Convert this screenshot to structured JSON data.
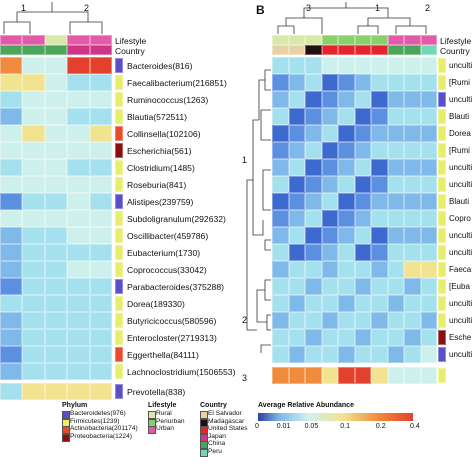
{
  "colors": {
    "dark_blue": "#2c3fa6",
    "blue": "#3e69cf",
    "mid_blue": "#5b8fe0",
    "light_blue": "#7fb9ea",
    "cyan": "#a4e0ee",
    "pale": "#cdf0ec",
    "yellow": "#f2e390",
    "orange": "#f08a3c",
    "red": "#e3402e",
    "phylum_bacteroidetes": "#5b4fc9",
    "phylum_firmicutes": "#e8ee6c",
    "phylum_actinobacteria": "#ea4a2a",
    "phylum_proteobacteria": "#8a1010",
    "lifestyle_rural": "#d8e8a8",
    "lifestyle_periurban": "#8bcf6a",
    "lifestyle_urban": "#e35aa8",
    "country_el_salvador": "#e8d2a4",
    "country_madagascar": "#201010",
    "country_united_states": "#e8232d",
    "country_china": "#4aa65a",
    "country_japan": "#d03488",
    "country_peru": "#6fd9b2"
  },
  "panel_a": {
    "cluster_labels": [
      "1",
      "2"
    ],
    "header_labels": {
      "lifestyle": "Lifestyle",
      "country": "Country"
    },
    "rows": [
      {
        "label": "Bacteroides(816)",
        "phylum": "bacteroidetes"
      },
      {
        "label": "Faecalibacterium(216851)",
        "phylum": "firmicutes"
      },
      {
        "label": "Ruminococcus(1263)",
        "phylum": "firmicutes"
      },
      {
        "label": "Blautia(572511)",
        "phylum": "firmicutes"
      },
      {
        "label": "Collinsella(102106)",
        "phylum": "actinobacteria"
      },
      {
        "label": "Escherichia(561)",
        "phylum": "proteobacteria"
      },
      {
        "label": "Clostridium(1485)",
        "phylum": "firmicutes"
      },
      {
        "label": "Roseburia(841)",
        "phylum": "firmicutes"
      },
      {
        "label": "Alistipes(239759)",
        "phylum": "bacteroidetes"
      },
      {
        "label": "Subdoligranulum(292632)",
        "phylum": "firmicutes"
      },
      {
        "label": "Oscillibacter(459786)",
        "phylum": "firmicutes"
      },
      {
        "label": "Eubacterium(1730)",
        "phylum": "firmicutes"
      },
      {
        "label": "Coprococcus(33042)",
        "phylum": "firmicutes"
      },
      {
        "label": "Parabacteroides(375288)",
        "phylum": "bacteroidetes"
      },
      {
        "label": "Dorea(189330)",
        "phylum": "firmicutes"
      },
      {
        "label": "Butyricicoccus(580596)",
        "phylum": "firmicutes"
      },
      {
        "label": "Enterocloster(2719313)",
        "phylum": "firmicutes"
      },
      {
        "label": "Eggerthella(84111)",
        "phylum": "actinobacteria"
      },
      {
        "label": "Lachnoclostridium(1506553)",
        "phylum": "firmicutes"
      },
      {
        "label": "Prevotella(838)",
        "phylum": "bacteroidetes"
      }
    ],
    "cells": [
      [
        "orange",
        "pale",
        "pale",
        "red",
        "red"
      ],
      [
        "yellow",
        "yellow",
        "pale",
        "cyan",
        "cyan"
      ],
      [
        "cyan",
        "pale",
        "pale",
        "pale",
        "pale"
      ],
      [
        "light_blue",
        "pale",
        "pale",
        "cyan",
        "cyan"
      ],
      [
        "pale",
        "yellow",
        "pale",
        "pale",
        "yellow"
      ],
      [
        "pale",
        "pale",
        "pale",
        "pale",
        "pale"
      ],
      [
        "cyan",
        "pale",
        "pale",
        "cyan",
        "cyan"
      ],
      [
        "pale",
        "pale",
        "pale",
        "pale",
        "pale"
      ],
      [
        "mid_blue",
        "cyan",
        "cyan",
        "pale",
        "cyan"
      ],
      [
        "pale",
        "pale",
        "pale",
        "pale",
        "pale"
      ],
      [
        "light_blue",
        "cyan",
        "cyan",
        "pale",
        "pale"
      ],
      [
        "light_blue",
        "cyan",
        "cyan",
        "cyan",
        "cyan"
      ],
      [
        "light_blue",
        "cyan",
        "cyan",
        "pale",
        "pale"
      ],
      [
        "mid_blue",
        "cyan",
        "cyan",
        "cyan",
        "cyan"
      ],
      [
        "cyan",
        "cyan",
        "cyan",
        "cyan",
        "cyan"
      ],
      [
        "light_blue",
        "cyan",
        "cyan",
        "cyan",
        "cyan"
      ],
      [
        "light_blue",
        "cyan",
        "cyan",
        "cyan",
        "cyan"
      ],
      [
        "mid_blue",
        "cyan",
        "cyan",
        "cyan",
        "cyan"
      ],
      [
        "light_blue",
        "cyan",
        "cyan",
        "cyan",
        "cyan"
      ],
      [
        "cyan",
        "yellow",
        "yellow",
        "yellow",
        "yellow"
      ]
    ],
    "lifestyle_bar": [
      "urban",
      "urban",
      "rural",
      "urban",
      "urban"
    ],
    "country_bar": [
      "china",
      "china",
      "china",
      "japan",
      "japan"
    ]
  },
  "panel_b": {
    "letter": "B",
    "cluster_labels": [
      "3",
      "1",
      "2"
    ],
    "row_clusters": [
      "1",
      "2",
      "3"
    ],
    "header_labels": {
      "lifestyle": "Lifestyle",
      "country": "Country"
    },
    "rows": [
      {
        "label": "[Rumi",
        "phylum": "firmicutes"
      },
      {
        "label": "unculti",
        "phylum": "bacteroidetes"
      },
      {
        "label": "Blauti",
        "phylum": "firmicutes"
      },
      {
        "label": "Dorea",
        "phylum": "firmicutes"
      },
      {
        "label": "[Rumi",
        "phylum": "firmicutes"
      },
      {
        "label": "unculti",
        "phylum": "firmicutes"
      },
      {
        "label": "unculti",
        "phylum": "firmicutes"
      },
      {
        "label": "Blauti",
        "phylum": "firmicutes"
      },
      {
        "label": "Copro",
        "phylum": "firmicutes"
      },
      {
        "label": "unculti",
        "phylum": "firmicutes"
      },
      {
        "label": "unculti",
        "phylum": "firmicutes"
      },
      {
        "label": "Faeca",
        "phylum": "firmicutes"
      },
      {
        "label": "[Euba",
        "phylum": "firmicutes"
      },
      {
        "label": "unculti",
        "phylum": "firmicutes"
      },
      {
        "label": "unculti",
        "phylum": "firmicutes"
      },
      {
        "label": "Esche",
        "phylum": "proteobacteria"
      },
      {
        "label": "unculti",
        "phylum": "bacteroidetes"
      }
    ],
    "top_row_label": "unculti",
    "extra_labels": [
      "unculti",
      "unculti"
    ],
    "lifestyle_bar": [
      "rural",
      "rural",
      "rural",
      "periurban",
      "periurban",
      "periurban",
      "periurban",
      "urban",
      "urban",
      "urban"
    ],
    "country_bar": [
      "el_salvador",
      "el_salvador",
      "madagascar",
      "united_states",
      "united_states",
      "united_states",
      "united_states",
      "china",
      "china",
      "peru"
    ]
  },
  "legend": {
    "phylum_title": "Phylum",
    "phylum_items": [
      {
        "label": "Bacteroidetes(976)",
        "key": "phylum_bacteroidetes"
      },
      {
        "label": "Firmicutes(1239)",
        "key": "phylum_firmicutes"
      },
      {
        "label": "Actinobacteria(201174)",
        "key": "phylum_actinobacteria"
      },
      {
        "label": "Proteobacteria(1224)",
        "key": "phylum_proteobacteria"
      }
    ],
    "lifestyle_title": "Lifestyle",
    "lifestyle_items": [
      {
        "label": "Rural",
        "key": "lifestyle_rural"
      },
      {
        "label": "Periurban",
        "key": "lifestyle_periurban"
      },
      {
        "label": "Urban",
        "key": "lifestyle_urban"
      }
    ],
    "country_title": "Country",
    "country_items": [
      {
        "label": "El Salvador",
        "key": "country_el_salvador"
      },
      {
        "label": "Madagascar",
        "key": "country_madagascar"
      },
      {
        "label": "United States",
        "key": "country_united_states"
      },
      {
        "label": "Japan",
        "key": "country_japan"
      },
      {
        "label": "China",
        "key": "country_china"
      },
      {
        "label": "Peru",
        "key": "country_peru"
      }
    ],
    "abundance_title": "Average Relative Abundance",
    "abundance_ticks": [
      "0",
      "0.01",
      "0.05",
      "0.1",
      "0.2",
      "0.4"
    ]
  }
}
